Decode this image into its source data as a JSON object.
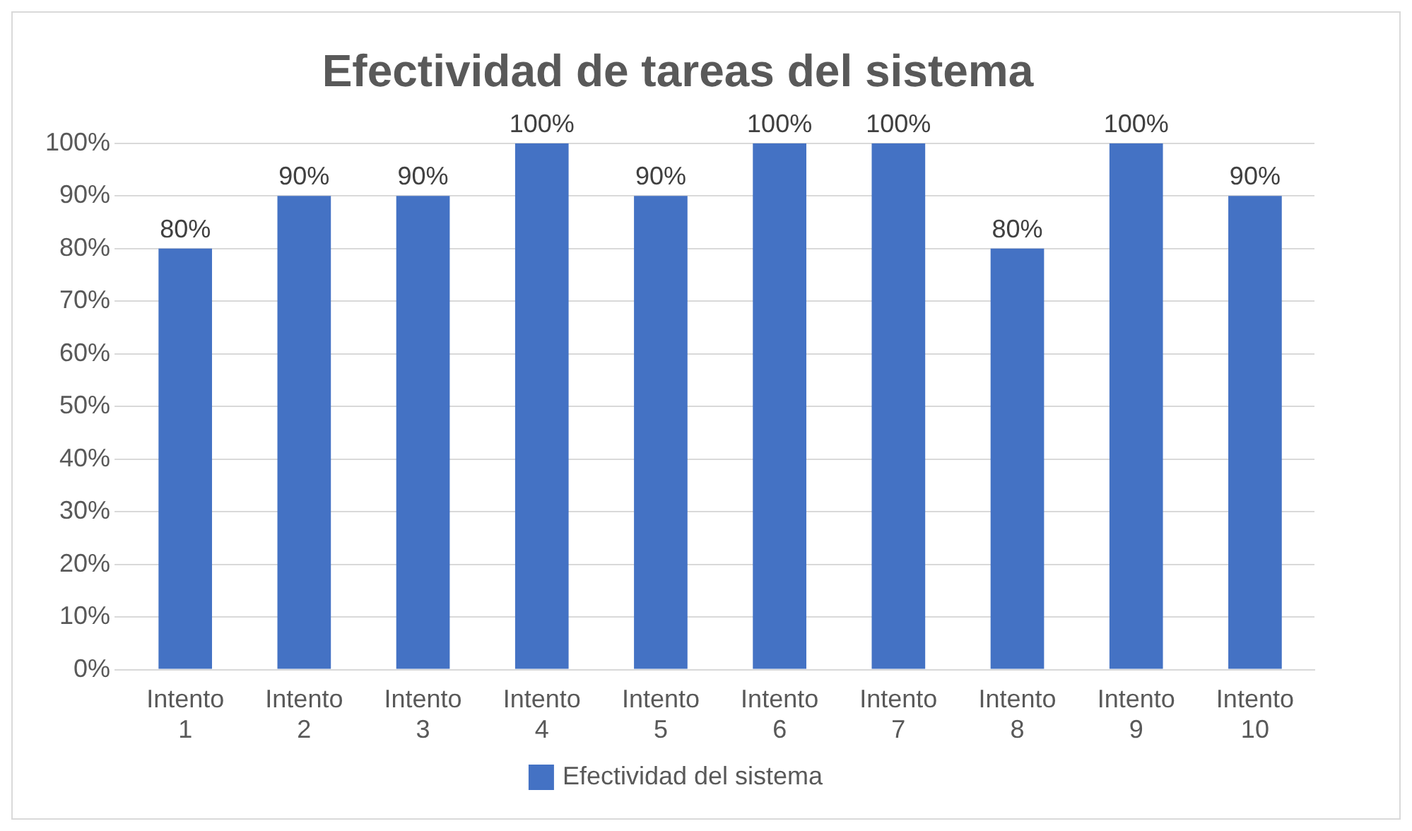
{
  "chart_data": {
    "type": "bar",
    "title": "Efectividad de tareas del sistema",
    "categories": [
      "Intento 1",
      "Intento 2",
      "Intento 3",
      "Intento 4",
      "Intento 5",
      "Intento 6",
      "Intento 7",
      "Intento 8",
      "Intento 9",
      "Intento 10"
    ],
    "series": [
      {
        "name": "Efectividad del sistema",
        "color": "#4472c4",
        "values": [
          80,
          90,
          90,
          100,
          90,
          100,
          100,
          80,
          100,
          90
        ],
        "value_labels": [
          "80%",
          "90%",
          "90%",
          "100%",
          "90%",
          "100%",
          "100%",
          "80%",
          "100%",
          "90%"
        ]
      }
    ],
    "ylim": [
      0,
      100
    ],
    "yticks": [
      {
        "value": 0,
        "label": "0%"
      },
      {
        "value": 10,
        "label": "10%"
      },
      {
        "value": 20,
        "label": "20%"
      },
      {
        "value": 30,
        "label": "30%"
      },
      {
        "value": 40,
        "label": "40%"
      },
      {
        "value": 50,
        "label": "50%"
      },
      {
        "value": 60,
        "label": "60%"
      },
      {
        "value": 70,
        "label": "70%"
      },
      {
        "value": 80,
        "label": "80%"
      },
      {
        "value": 90,
        "label": "90%"
      },
      {
        "value": 100,
        "label": "100%"
      }
    ],
    "grid": "y",
    "legend": "bottom"
  }
}
